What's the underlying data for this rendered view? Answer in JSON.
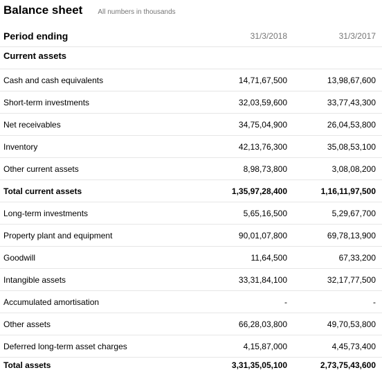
{
  "header": {
    "title": "Balance sheet",
    "subtitle": "All numbers in thousands"
  },
  "table": {
    "period_label": "Period ending",
    "periods": [
      "31/3/2018",
      "31/3/2017"
    ],
    "section_label": "Current assets",
    "rows": [
      {
        "label": "Cash and cash equivalents",
        "v2018": "14,71,67,500",
        "v2017": "13,98,67,600",
        "bold": false
      },
      {
        "label": "Short-term investments",
        "v2018": "32,03,59,600",
        "v2017": "33,77,43,300",
        "bold": false
      },
      {
        "label": "Net receivables",
        "v2018": "34,75,04,900",
        "v2017": "26,04,53,800",
        "bold": false
      },
      {
        "label": "Inventory",
        "v2018": "42,13,76,300",
        "v2017": "35,08,53,100",
        "bold": false
      },
      {
        "label": "Other current assets",
        "v2018": "8,98,73,800",
        "v2017": "3,08,08,200",
        "bold": false
      },
      {
        "label": "Total current assets",
        "v2018": "1,35,97,28,400",
        "v2017": "1,16,11,97,500",
        "bold": true
      },
      {
        "label": "Long-term investments",
        "v2018": "5,65,16,500",
        "v2017": "5,29,67,700",
        "bold": false
      },
      {
        "label": "Property plant and equipment",
        "v2018": "90,01,07,800",
        "v2017": "69,78,13,900",
        "bold": false
      },
      {
        "label": "Goodwill",
        "v2018": "11,64,500",
        "v2017": "67,33,200",
        "bold": false
      },
      {
        "label": "Intangible assets",
        "v2018": "33,31,84,100",
        "v2017": "32,17,77,500",
        "bold": false
      },
      {
        "label": "Accumulated amortisation",
        "v2018": "-",
        "v2017": "-",
        "bold": false
      },
      {
        "label": "Other assets",
        "v2018": "66,28,03,800",
        "v2017": "49,70,53,800",
        "bold": false
      },
      {
        "label": "Deferred long-term asset charges",
        "v2018": "4,15,87,000",
        "v2017": "4,45,73,400",
        "bold": false
      },
      {
        "label": "Total assets",
        "v2018": "3,31,35,05,100",
        "v2017": "2,73,75,43,600",
        "bold": true
      }
    ]
  }
}
